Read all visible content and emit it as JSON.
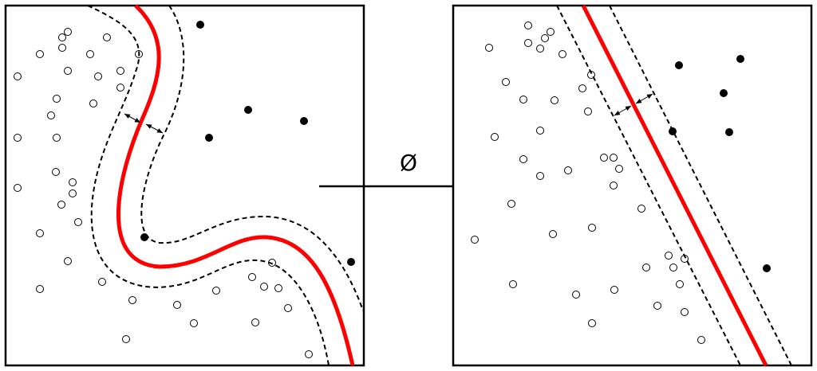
{
  "mapping_label": "Ø",
  "colors": {
    "decision_boundary": "#ff0000",
    "margin": "#000000",
    "class_a": "#ffffff",
    "class_b": "#000000"
  },
  "panels": [
    {
      "name": "input-space",
      "boundary": "curved"
    },
    {
      "name": "feature-space",
      "boundary": "linear"
    }
  ]
}
